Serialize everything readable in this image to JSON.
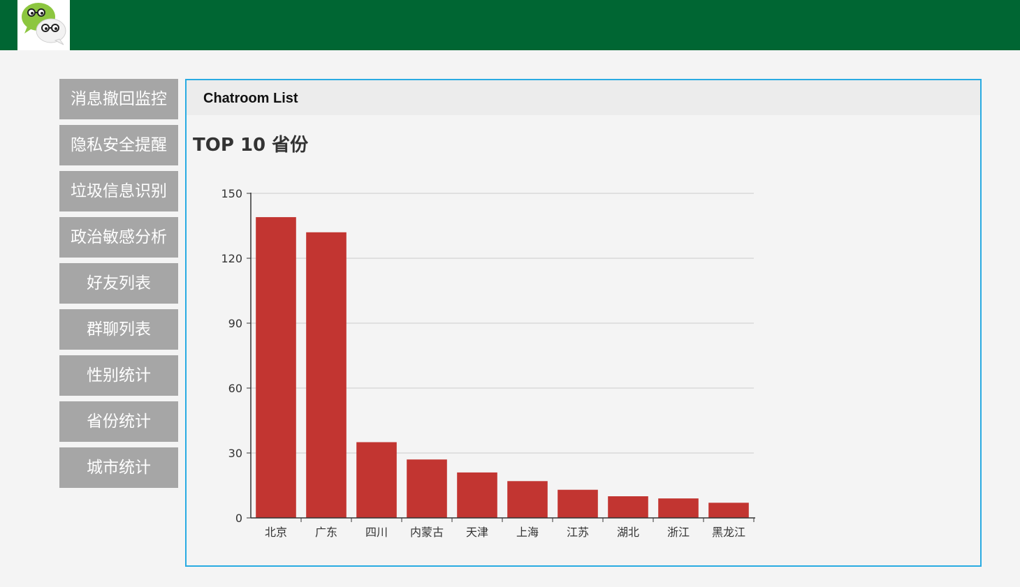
{
  "header": {
    "logo_icon": "wechat-glasses-icon",
    "background_color": "#006633"
  },
  "sidebar": {
    "items": [
      {
        "label": "消息撤回监控"
      },
      {
        "label": "隐私安全提醒"
      },
      {
        "label": "垃圾信息识别"
      },
      {
        "label": "政治敏感分析"
      },
      {
        "label": "好友列表"
      },
      {
        "label": "群聊列表"
      },
      {
        "label": "性别统计"
      },
      {
        "label": "省份统计"
      },
      {
        "label": "城市统计"
      }
    ]
  },
  "panel": {
    "title": "Chatroom List",
    "border_color": "#29abe2"
  },
  "chart_data": {
    "type": "bar",
    "title": "TOP 10 省份",
    "categories": [
      "北京",
      "广东",
      "四川",
      "内蒙古",
      "天津",
      "上海",
      "江苏",
      "湖北",
      "浙江",
      "黑龙江"
    ],
    "values": [
      139,
      132,
      35,
      27,
      21,
      17,
      13,
      10,
      9,
      7
    ],
    "ylim": [
      0,
      150
    ],
    "yticks": [
      0,
      30,
      60,
      90,
      120,
      150
    ],
    "grid": true,
    "bar_color": "#c23531",
    "xlabel": "",
    "ylabel": ""
  }
}
